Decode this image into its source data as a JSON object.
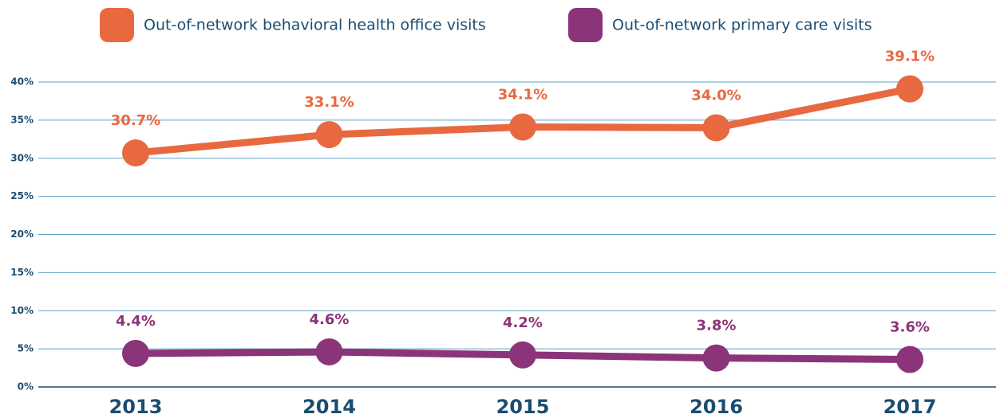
{
  "chart_data": {
    "type": "line",
    "categories": [
      "2013",
      "2014",
      "2015",
      "2016",
      "2017"
    ],
    "series": [
      {
        "name": "Out-of-network behavioral health office visits",
        "color": "#e8693f",
        "values": [
          30.7,
          33.1,
          34.1,
          34.0,
          39.1
        ],
        "value_labels": [
          "30.7%",
          "33.1%",
          "34.1%",
          "34.0%",
          "39.1%"
        ]
      },
      {
        "name": "Out-of-network primary care visits",
        "color": "#8b3479",
        "values": [
          4.4,
          4.6,
          4.2,
          3.8,
          3.6
        ],
        "value_labels": [
          "4.4%",
          "4.6%",
          "4.2%",
          "3.8%",
          "3.6%"
        ]
      }
    ],
    "ylim": [
      0,
      40
    ],
    "yticks": [
      {
        "value": 0,
        "label": "0%"
      },
      {
        "value": 5,
        "label": "5%"
      },
      {
        "value": 10,
        "label": "10%"
      },
      {
        "value": 15,
        "label": "15%"
      },
      {
        "value": 20,
        "label": "20%"
      },
      {
        "value": 25,
        "label": "25%"
      },
      {
        "value": 30,
        "label": "30%"
      },
      {
        "value": 35,
        "label": "35%"
      },
      {
        "value": 40,
        "label": "40%"
      }
    ],
    "grid": true,
    "legend": "top"
  }
}
